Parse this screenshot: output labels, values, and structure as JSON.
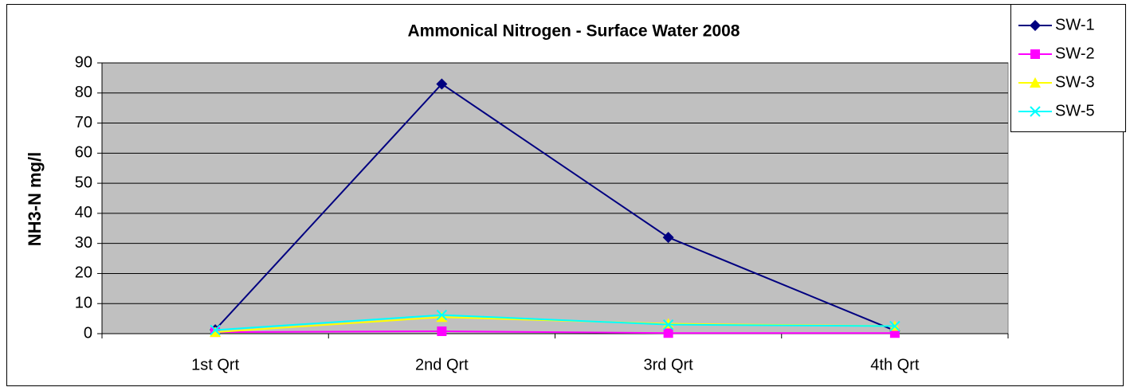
{
  "chart_data": {
    "type": "line",
    "title": "Ammonical Nitrogen - Surface Water 2008",
    "y_label": "NH3-N mg/l",
    "categories": [
      "1st Qrt",
      "2nd Qrt",
      "3rd Qrt",
      "4th Qrt"
    ],
    "series": [
      {
        "name": "SW-1",
        "color": "#000080",
        "marker": "diamond",
        "values": [
          1.3,
          83,
          32,
          1
        ]
      },
      {
        "name": "SW-2",
        "color": "#ff00ff",
        "marker": "square",
        "values": [
          0.5,
          0.8,
          0.2,
          0.2
        ]
      },
      {
        "name": "SW-3",
        "color": "#ffff00",
        "marker": "triangle",
        "values": [
          0.5,
          5.5,
          3.3,
          2.5
        ]
      },
      {
        "name": "SW-5",
        "color": "#00ffff",
        "marker": "x",
        "values": [
          1.2,
          6.2,
          3.0,
          2.5
        ]
      }
    ],
    "ylim": [
      0,
      90
    ],
    "yticks": [
      0,
      10,
      20,
      30,
      40,
      50,
      60,
      70,
      80,
      90
    ],
    "grid": true,
    "plot_background": "#c0c0c0",
    "legend": "top-right"
  }
}
